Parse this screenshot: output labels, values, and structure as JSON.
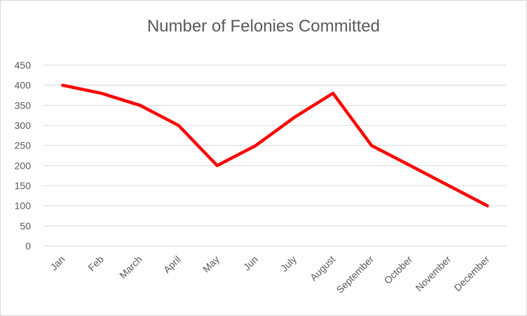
{
  "chart_data": {
    "type": "line",
    "title": "Number of Felonies Committed",
    "xlabel": "",
    "ylabel": "",
    "categories": [
      "Jan",
      "Feb",
      "March",
      "April",
      "May",
      "Jun",
      "July",
      "August",
      "September",
      "October",
      "November",
      "December"
    ],
    "series": [
      {
        "name": "",
        "values": [
          400,
          380,
          350,
          300,
          200,
          250,
          320,
          380,
          250,
          200,
          150,
          100
        ],
        "color": "#ff0000"
      }
    ],
    "ylim": [
      0,
      450
    ],
    "yticks": [
      "0",
      "50",
      "100",
      "150",
      "200",
      "250",
      "300",
      "350",
      "400",
      "450"
    ],
    "grid": true,
    "legend": "none",
    "gridline_color": "#d9d9d9",
    "text_color": "#595959"
  }
}
